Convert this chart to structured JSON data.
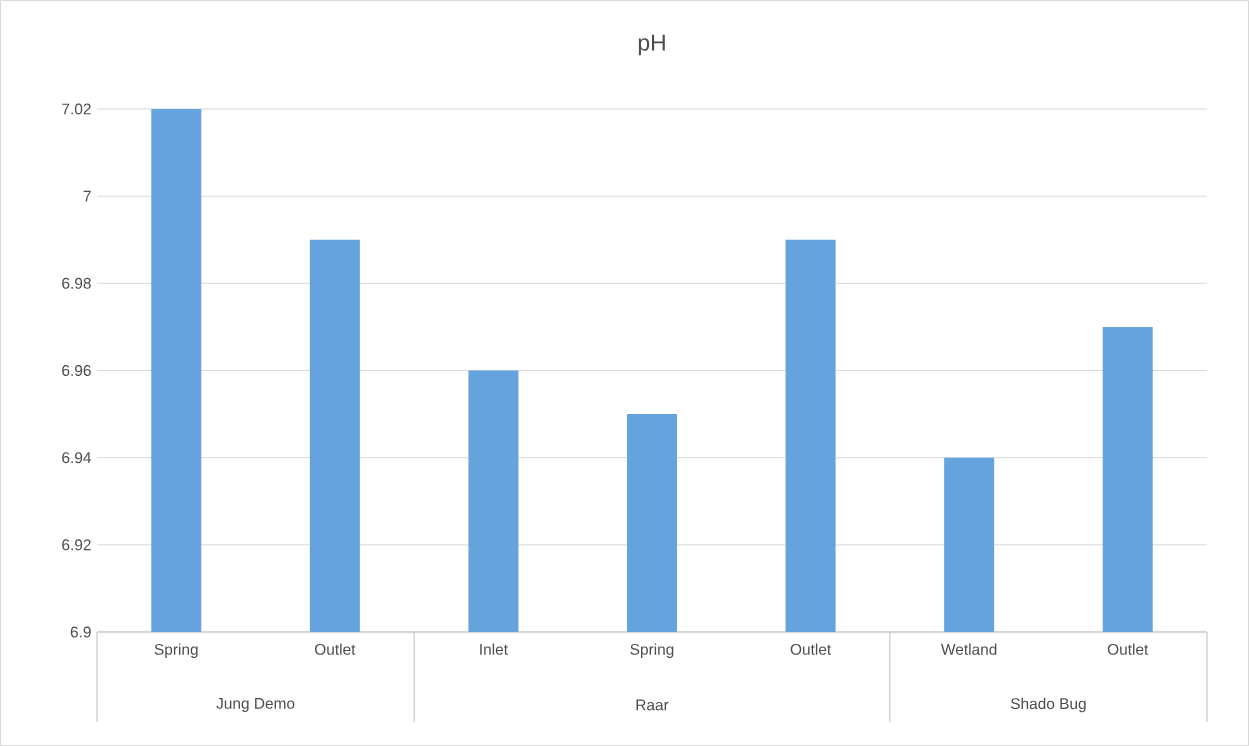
{
  "chart_data": {
    "type": "bar",
    "title": "pH",
    "categories": [
      "Spring",
      "Outlet",
      "Inlet",
      "Spring",
      "Outlet",
      "Wetland",
      "Outlet"
    ],
    "values": [
      7.02,
      6.99,
      6.96,
      6.95,
      6.99,
      6.94,
      6.97
    ],
    "color": "#65a3de",
    "ylim": [
      6.9,
      7.02
    ],
    "yticks": [
      6.9,
      6.92,
      6.94,
      6.96,
      6.98,
      7,
      7.02
    ],
    "grid": "y",
    "annotations": [
      "Jung Demo",
      "Raar",
      "Shado Bug"
    ]
  }
}
